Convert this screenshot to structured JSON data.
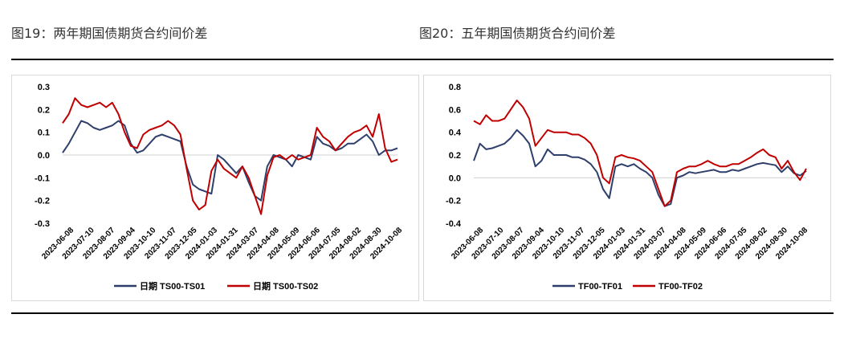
{
  "titles": {
    "left": "图19：两年期国债期货合约间价差",
    "right": "图20：五年期国债期货合约间价差"
  },
  "colors": {
    "navy": "#2f3f6b",
    "red": "#c00000",
    "zero": "#d0d0d0",
    "axis_text": "#000000"
  },
  "chart_data": [
    {
      "type": "line",
      "title": "图19：两年期国债期货合约间价差",
      "xlabel": "",
      "ylabel": "",
      "ylim": [
        -0.3,
        0.3
      ],
      "yticks": [
        0.3,
        0.2,
        0.1,
        0.0,
        -0.1,
        -0.2,
        -0.3
      ],
      "ytick_labels": [
        "0.3",
        "0.2",
        "0.1",
        "0.0",
        "-0.1",
        "-0.2",
        "-0.3"
      ],
      "x_tick_labels": [
        "2023-06-08",
        "2023-07-10",
        "2023-08-07",
        "2023-09-04",
        "2023-10-10",
        "2023-11-07",
        "2023-12-05",
        "2024-01-03",
        "2024-01-31",
        "2024-03-07",
        "2024-04-08",
        "2024-05-09",
        "2024-06-06",
        "2024-07-05",
        "2024-08-02",
        "2024-08-30",
        "2024-10-08"
      ],
      "legend_position": "bottom",
      "series": [
        {
          "name": "日期 TS00-TS01",
          "color": "#2f3f6b",
          "values": [
            0.01,
            0.05,
            0.1,
            0.15,
            0.14,
            0.12,
            0.11,
            0.12,
            0.13,
            0.15,
            0.13,
            0.05,
            0.01,
            0.02,
            0.05,
            0.08,
            0.09,
            0.08,
            0.07,
            0.06,
            -0.05,
            -0.13,
            -0.15,
            -0.16,
            -0.17,
            0.0,
            -0.02,
            -0.05,
            -0.08,
            -0.05,
            -0.12,
            -0.18,
            -0.2,
            -0.05,
            0.0,
            -0.01,
            -0.02,
            -0.05,
            0.0,
            -0.01,
            -0.02,
            0.08,
            0.05,
            0.04,
            0.02,
            0.03,
            0.05,
            0.05,
            0.07,
            0.09,
            0.06,
            0.0,
            0.02,
            0.02,
            0.03
          ]
        },
        {
          "name": "日期 TS00-TS02",
          "color": "#c00000",
          "values": [
            0.14,
            0.18,
            0.25,
            0.22,
            0.21,
            0.22,
            0.23,
            0.21,
            0.23,
            0.18,
            0.1,
            0.04,
            0.03,
            0.09,
            0.11,
            0.12,
            0.13,
            0.15,
            0.13,
            0.09,
            -0.06,
            -0.2,
            -0.24,
            -0.22,
            -0.07,
            -0.02,
            -0.06,
            -0.08,
            -0.1,
            -0.05,
            -0.1,
            -0.18,
            -0.26,
            -0.09,
            -0.01,
            0.0,
            -0.02,
            0.0,
            -0.02,
            -0.01,
            0.0,
            0.12,
            0.08,
            0.06,
            0.02,
            0.05,
            0.08,
            0.1,
            0.11,
            0.13,
            0.08,
            0.18,
            0.03,
            -0.03,
            -0.02
          ]
        }
      ]
    },
    {
      "type": "line",
      "title": "图20：五年期国债期货合约间价差",
      "xlabel": "",
      "ylabel": "",
      "ylim": [
        -0.4,
        0.8
      ],
      "yticks": [
        0.8,
        0.6,
        0.4,
        0.2,
        0.0,
        -0.2,
        -0.4
      ],
      "ytick_labels": [
        "0.8",
        "0.6",
        "0.4",
        "0.2",
        "0.0",
        "-0.2",
        "-0.4"
      ],
      "x_tick_labels": [
        "2023-06-08",
        "2023-07-10",
        "2023-08-07",
        "2023-09-04",
        "2023-10-10",
        "2023-11-07",
        "2023-12-05",
        "2024-01-03",
        "2024-01-31",
        "2024-03-07",
        "2024-04-08",
        "2024-05-09",
        "2024-06-06",
        "2024-07-05",
        "2024-08-02",
        "2024-08-30",
        "2024-10-08"
      ],
      "legend_position": "bottom",
      "series": [
        {
          "name": "TF00-TF01",
          "color": "#2f3f6b",
          "values": [
            0.15,
            0.3,
            0.25,
            0.26,
            0.28,
            0.3,
            0.35,
            0.42,
            0.37,
            0.3,
            0.1,
            0.15,
            0.25,
            0.2,
            0.2,
            0.2,
            0.18,
            0.18,
            0.16,
            0.12,
            0.05,
            -0.1,
            -0.18,
            0.1,
            0.12,
            0.1,
            0.12,
            0.08,
            0.05,
            0.0,
            -0.15,
            -0.25,
            -0.23,
            0.0,
            0.02,
            0.05,
            0.04,
            0.05,
            0.06,
            0.07,
            0.05,
            0.05,
            0.07,
            0.06,
            0.08,
            0.1,
            0.12,
            0.13,
            0.12,
            0.11,
            0.05,
            0.1,
            0.04,
            0.02,
            0.06
          ]
        },
        {
          "name": "TF00-TF02",
          "color": "#c00000",
          "values": [
            0.5,
            0.47,
            0.55,
            0.5,
            0.5,
            0.52,
            0.6,
            0.68,
            0.62,
            0.52,
            0.28,
            0.35,
            0.42,
            0.4,
            0.4,
            0.4,
            0.38,
            0.38,
            0.35,
            0.3,
            0.2,
            0.0,
            -0.05,
            0.18,
            0.2,
            0.18,
            0.17,
            0.15,
            0.1,
            0.05,
            -0.1,
            -0.25,
            -0.2,
            0.05,
            0.08,
            0.1,
            0.1,
            0.12,
            0.15,
            0.12,
            0.1,
            0.1,
            0.12,
            0.12,
            0.15,
            0.18,
            0.22,
            0.25,
            0.2,
            0.18,
            0.08,
            0.15,
            0.05,
            -0.02,
            0.08
          ]
        }
      ]
    }
  ]
}
